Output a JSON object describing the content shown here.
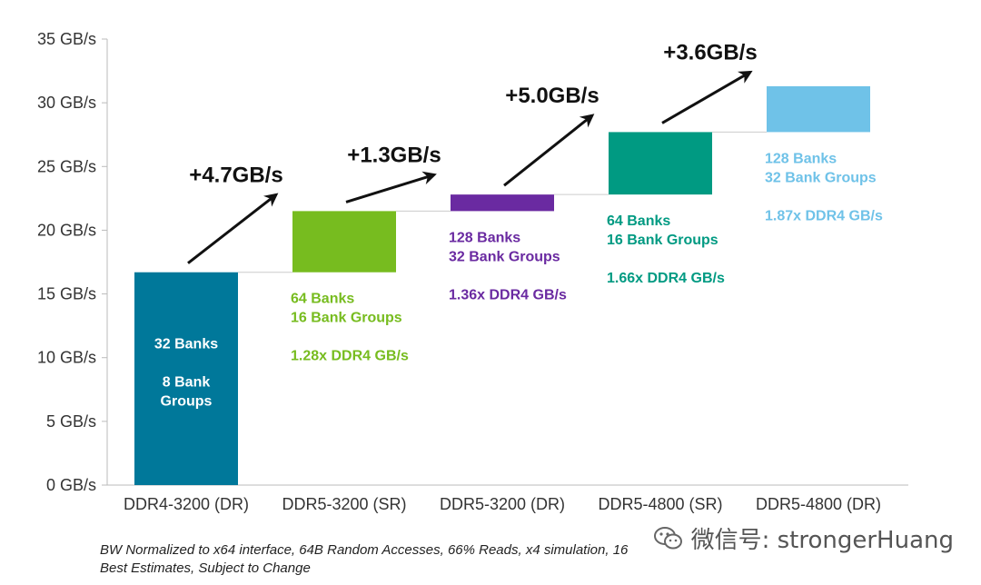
{
  "chart_data": {
    "type": "bar",
    "subtype": "waterfall-floating",
    "categories": [
      "DDR4-3200 (DR)",
      "DDR5-3200 (SR)",
      "DDR5-3200 (DR)",
      "DDR5-4800 (SR)",
      "DDR5-4800 (DR)"
    ],
    "values": [
      16.7,
      21.5,
      22.8,
      27.7,
      31.3
    ],
    "bar_base": [
      0,
      16.7,
      21.5,
      22.8,
      27.7
    ],
    "colors": [
      "#00789a",
      "#77bc1f",
      "#6a2aa1",
      "#009a82",
      "#6fc2e8"
    ],
    "ylim": [
      0,
      35
    ],
    "yticks": [
      0,
      5,
      10,
      15,
      20,
      25,
      30,
      35
    ],
    "ytick_labels": [
      "0 GB/s",
      "5 GB/s",
      "10 GB/s",
      "15 GB/s",
      "20 GB/s",
      "25 GB/s",
      "30 GB/s",
      "35 GB/s"
    ],
    "grid": false,
    "xlabel": "",
    "ylabel": "",
    "deltas": [
      "+4.7GB/s",
      "+1.3GB/s",
      "+5.0GB/s",
      "+3.6GB/s"
    ],
    "annotations": [
      {
        "lines": [
          "32 Banks",
          "",
          "8 Bank",
          "Groups"
        ],
        "color": "#ffffff"
      },
      {
        "lines": [
          "64 Banks",
          "16 Bank Groups",
          "",
          "1.28x DDR4 GB/s"
        ],
        "color": "#77bc1f"
      },
      {
        "lines": [
          "128 Banks",
          "32 Bank Groups",
          "",
          "1.36x DDR4 GB/s"
        ],
        "color": "#6a2aa1"
      },
      {
        "lines": [
          "64 Banks",
          "16 Bank Groups",
          "",
          "1.66x DDR4 GB/s"
        ],
        "color": "#009a82"
      },
      {
        "lines": [
          "128 Banks",
          "32 Bank Groups",
          "",
          "1.87x DDR4 GB/s"
        ],
        "color": "#6fc2e8"
      }
    ]
  },
  "footnote": {
    "line1": "BW Normalized to x64 interface, 64B Random Accesses, 66% Reads, x4 simulation, 16",
    "line2": "Best Estimates, Subject to Change"
  },
  "watermark": {
    "text": "微信号: strongerHuang",
    "icon": "wechat-icon"
  }
}
